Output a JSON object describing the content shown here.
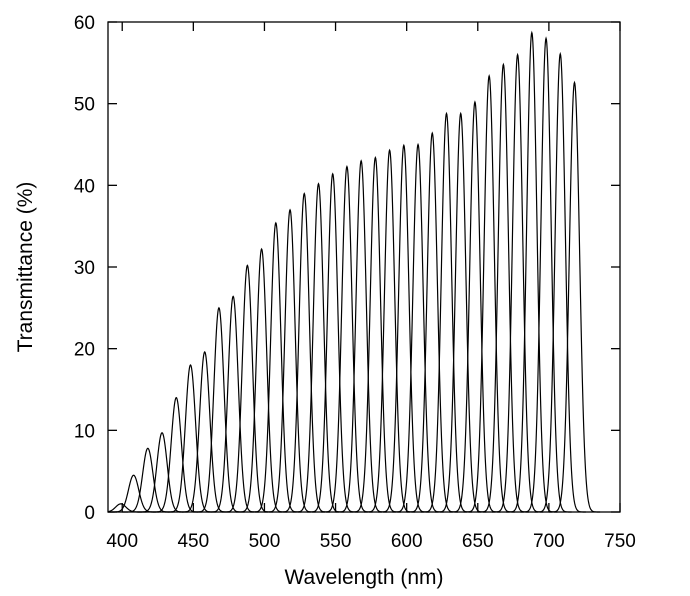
{
  "chart_data": {
    "type": "line",
    "title": "",
    "xlabel": "Wavelength (nm)",
    "ylabel": "Transmittance (%)",
    "xlim": [
      390,
      750
    ],
    "ylim": [
      0,
      60
    ],
    "x_ticks": [
      400,
      450,
      500,
      550,
      600,
      650,
      700,
      750
    ],
    "y_ticks": [
      0,
      10,
      20,
      30,
      40,
      50,
      60
    ],
    "grid": false,
    "legend": "none",
    "line_color": "#000000",
    "series": [
      {
        "center": 399,
        "peak": 1
      },
      {
        "center": 408,
        "peak": 4.5
      },
      {
        "center": 418,
        "peak": 7.8
      },
      {
        "center": 428,
        "peak": 9.7
      },
      {
        "center": 438,
        "peak": 14
      },
      {
        "center": 448,
        "peak": 18
      },
      {
        "center": 458,
        "peak": 19.6
      },
      {
        "center": 468,
        "peak": 25
      },
      {
        "center": 478,
        "peak": 26.4
      },
      {
        "center": 488,
        "peak": 30.2
      },
      {
        "center": 498,
        "peak": 32.2
      },
      {
        "center": 508,
        "peak": 35.4
      },
      {
        "center": 518,
        "peak": 37
      },
      {
        "center": 528,
        "peak": 39
      },
      {
        "center": 538,
        "peak": 40.2
      },
      {
        "center": 548,
        "peak": 41.4
      },
      {
        "center": 558,
        "peak": 42.3
      },
      {
        "center": 568,
        "peak": 43
      },
      {
        "center": 578,
        "peak": 43.4
      },
      {
        "center": 588,
        "peak": 44.3
      },
      {
        "center": 598,
        "peak": 44.9
      },
      {
        "center": 608,
        "peak": 45
      },
      {
        "center": 618,
        "peak": 46.4
      },
      {
        "center": 628,
        "peak": 48.8
      },
      {
        "center": 638,
        "peak": 48.8
      },
      {
        "center": 648,
        "peak": 50.2
      },
      {
        "center": 658,
        "peak": 53.4
      },
      {
        "center": 668,
        "peak": 54.8
      },
      {
        "center": 678,
        "peak": 56
      },
      {
        "center": 688,
        "peak": 58.7
      },
      {
        "center": 698,
        "peak": 58
      },
      {
        "center": 708,
        "peak": 56.1
      },
      {
        "center": 718,
        "peak": 52.6
      }
    ]
  }
}
